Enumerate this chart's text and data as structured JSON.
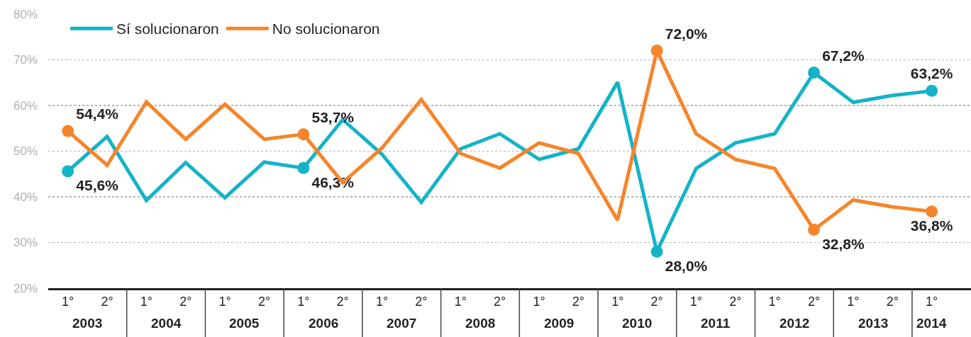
{
  "chart_data": {
    "type": "line",
    "categories": [
      "1°",
      "2°",
      "1°",
      "2°",
      "1°",
      "2°",
      "1°",
      "2°",
      "1°",
      "2°",
      "1°",
      "2°",
      "1°",
      "2°",
      "1°",
      "2°",
      "1°",
      "2°",
      "1°",
      "2°",
      "1°",
      "2°",
      "1°"
    ],
    "annotations": [
      "2003",
      "2004",
      "2005",
      "2006",
      "2007",
      "2008",
      "2009",
      "2010",
      "2011",
      "2012",
      "2013",
      "2014"
    ],
    "series": [
      {
        "name": "Sí solucionaron",
        "color": "#14b3c7",
        "values": [
          45.6,
          53.2,
          39.2,
          47.5,
          39.8,
          47.6,
          46.3,
          56.9,
          49.3,
          38.8,
          50.5,
          53.8,
          48.2,
          50.5,
          65.1,
          28.0,
          46.2,
          51.8,
          53.8,
          67.2,
          60.7,
          62.2,
          63.2
        ],
        "value_labels": [
          "45,6%",
          null,
          null,
          null,
          null,
          null,
          "46,3%",
          null,
          null,
          null,
          null,
          null,
          null,
          null,
          null,
          "28,0%",
          null,
          null,
          null,
          "67,2%",
          null,
          null,
          "63,2%"
        ]
      },
      {
        "name": "No solucionaron",
        "color": "#f5852b",
        "values": [
          54.4,
          46.9,
          60.8,
          52.6,
          60.3,
          52.6,
          53.7,
          43.1,
          50.7,
          61.3,
          49.5,
          46.3,
          51.8,
          49.5,
          34.9,
          72.0,
          53.8,
          48.2,
          46.2,
          32.8,
          39.3,
          37.8,
          36.8
        ],
        "value_labels": [
          "54,4%",
          null,
          null,
          null,
          null,
          null,
          "53,7%",
          null,
          null,
          null,
          null,
          null,
          null,
          null,
          null,
          "72,0%",
          null,
          null,
          null,
          "32,8%",
          null,
          null,
          "36,8%"
        ]
      }
    ],
    "ylim": [
      20,
      80
    ],
    "yticks": [
      {
        "value": 20,
        "label": "20%"
      },
      {
        "value": 30,
        "label": "30%"
      },
      {
        "value": 40,
        "label": "40%"
      },
      {
        "value": 50,
        "label": "50%"
      },
      {
        "value": 60,
        "label": "60%"
      },
      {
        "value": 70,
        "label": "70%"
      },
      {
        "value": 80,
        "label": "80%"
      }
    ],
    "grid": "y",
    "legend": "top left",
    "line_style": "solid"
  }
}
